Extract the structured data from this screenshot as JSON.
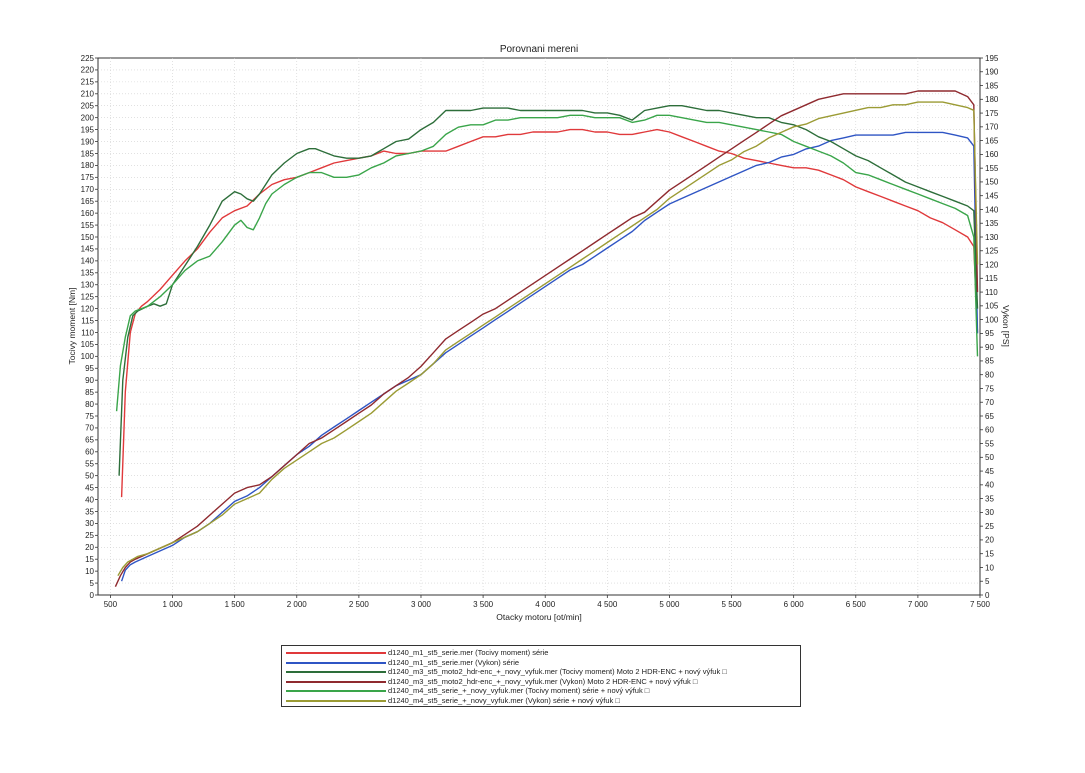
{
  "chart_data": {
    "type": "line",
    "title": "Porovnani mereni",
    "xlabel": "Otacky motoru [ot/min]",
    "ylabel": "Tocivy moment [Nm]",
    "y2label": "Vykon [PS]",
    "xlim": [
      400,
      7500
    ],
    "ylim": [
      0,
      225
    ],
    "y2lim": [
      0,
      195
    ],
    "xticks": [
      500,
      1000,
      1500,
      2000,
      2500,
      3000,
      3500,
      4000,
      4500,
      5000,
      5500,
      6000,
      6500,
      7000,
      7500
    ],
    "xtick_labels": [
      "500",
      "1 000",
      "1 500",
      "2 000",
      "2 500",
      "3 000",
      "3 500",
      "4 000",
      "4 500",
      "5 000",
      "5 500",
      "6 000",
      "6 500",
      "7 000",
      "7 500"
    ],
    "yticks": [
      0,
      5,
      10,
      15,
      20,
      25,
      30,
      35,
      40,
      45,
      50,
      55,
      60,
      65,
      70,
      75,
      80,
      85,
      90,
      95,
      100,
      105,
      110,
      115,
      120,
      125,
      130,
      135,
      140,
      145,
      150,
      155,
      160,
      165,
      170,
      175,
      180,
      185,
      190,
      195,
      200,
      205,
      210,
      215,
      220,
      225
    ],
    "y2ticks": [
      0,
      5,
      10,
      15,
      20,
      25,
      30,
      35,
      40,
      45,
      50,
      55,
      60,
      65,
      70,
      75,
      80,
      85,
      90,
      95,
      100,
      105,
      110,
      115,
      120,
      125,
      130,
      135,
      140,
      145,
      150,
      155,
      160,
      165,
      170,
      175,
      180,
      185,
      190,
      195
    ],
    "grid": true,
    "legend_position": "bottom",
    "series": [
      {
        "name": "d1240_m1_st5_serie.mer  (Tocivy moment)  série",
        "color": "#e0393b",
        "axis": "left",
        "x": [
          590,
          620,
          660,
          700,
          750,
          800,
          900,
          1000,
          1100,
          1200,
          1300,
          1400,
          1500,
          1600,
          1700,
          1800,
          1900,
          2000,
          2100,
          2200,
          2300,
          2400,
          2500,
          2600,
          2700,
          2800,
          2900,
          3000,
          3100,
          3200,
          3300,
          3400,
          3500,
          3600,
          3700,
          3800,
          3900,
          4000,
          4100,
          4200,
          4300,
          4400,
          4500,
          4600,
          4700,
          4800,
          4900,
          5000,
          5100,
          5200,
          5300,
          5400,
          5500,
          5600,
          5700,
          5800,
          5900,
          6000,
          6100,
          6200,
          6300,
          6400,
          6500,
          6600,
          6700,
          6800,
          6900,
          7000,
          7100,
          7200,
          7300,
          7400,
          7450,
          7480
        ],
        "y": [
          41,
          85,
          110,
          118,
          121,
          123,
          128,
          134,
          140,
          145,
          152,
          158,
          161,
          163,
          168,
          172,
          174,
          175,
          177,
          179,
          181,
          182,
          183,
          184,
          186,
          185,
          185,
          186,
          186,
          186,
          188,
          190,
          192,
          192,
          193,
          193,
          194,
          194,
          194,
          195,
          195,
          194,
          194,
          193,
          193,
          194,
          195,
          194,
          192,
          190,
          188,
          186,
          185,
          183,
          182,
          181,
          180,
          179,
          179,
          178,
          176,
          174,
          171,
          169,
          167,
          165,
          163,
          161,
          158,
          156,
          153,
          150,
          146,
          110
        ]
      },
      {
        "name": "d1240_m1_st5_serie.mer  (Vykon)  série",
        "color": "#2f55c4",
        "axis": "right",
        "x": [
          590,
          620,
          660,
          700,
          800,
          900,
          1000,
          1100,
          1200,
          1300,
          1400,
          1500,
          1600,
          1700,
          1800,
          1900,
          2000,
          2100,
          2200,
          2300,
          2400,
          2500,
          2600,
          2700,
          2800,
          2900,
          3000,
          3100,
          3200,
          3300,
          3400,
          3500,
          3600,
          3700,
          3800,
          3900,
          4000,
          4100,
          4200,
          4300,
          4400,
          4500,
          4600,
          4700,
          4800,
          4900,
          5000,
          5100,
          5200,
          5300,
          5400,
          5500,
          5600,
          5700,
          5800,
          5900,
          6000,
          6100,
          6200,
          6300,
          6400,
          6500,
          6600,
          6700,
          6800,
          6900,
          7000,
          7100,
          7200,
          7300,
          7400,
          7450,
          7480
        ],
        "y": [
          5,
          9,
          11,
          12,
          14,
          16,
          18,
          21,
          23,
          26,
          30,
          34,
          36,
          39,
          43,
          47,
          51,
          54,
          58,
          61,
          64,
          67,
          70,
          73,
          76,
          78,
          80,
          84,
          88,
          91,
          94,
          97,
          100,
          103,
          106,
          109,
          112,
          115,
          118,
          120,
          123,
          126,
          129,
          132,
          136,
          139,
          142,
          144,
          146,
          148,
          150,
          152,
          154,
          156,
          157,
          159,
          160,
          162,
          163,
          165,
          166,
          167,
          167,
          167,
          167,
          168,
          168,
          168,
          168,
          167,
          166,
          163,
          95
        ]
      },
      {
        "name": "d1240_m3_st5_moto2_hdr-enc_+_novy_vyfuk.mer  (Tocivy moment)  Moto 2  HDR-ENC + nový výfuk",
        "color": "#2d6e3a",
        "axis": "left",
        "x": [
          570,
          600,
          640,
          680,
          720,
          760,
          800,
          850,
          900,
          950,
          1000,
          1100,
          1200,
          1300,
          1400,
          1500,
          1550,
          1600,
          1650,
          1700,
          1750,
          1800,
          1900,
          2000,
          2100,
          2150,
          2200,
          2300,
          2400,
          2500,
          2600,
          2700,
          2800,
          2900,
          3000,
          3100,
          3200,
          3300,
          3400,
          3500,
          3600,
          3700,
          3800,
          3900,
          4000,
          4100,
          4200,
          4300,
          4400,
          4500,
          4600,
          4700,
          4800,
          4900,
          5000,
          5100,
          5200,
          5300,
          5400,
          5500,
          5600,
          5700,
          5800,
          5900,
          6000,
          6100,
          6200,
          6300,
          6400,
          6500,
          6600,
          6700,
          6800,
          6900,
          7000,
          7100,
          7200,
          7300,
          7400,
          7450,
          7480
        ],
        "y": [
          50,
          90,
          108,
          117,
          119,
          120,
          121,
          122,
          121,
          122,
          130,
          138,
          146,
          155,
          165,
          169,
          168,
          166,
          165,
          168,
          172,
          176,
          181,
          185,
          187,
          187,
          186,
          184,
          183,
          183,
          184,
          187,
          190,
          191,
          195,
          198,
          203,
          203,
          203,
          204,
          204,
          204,
          203,
          203,
          203,
          203,
          203,
          203,
          202,
          202,
          201,
          199,
          203,
          204,
          205,
          205,
          204,
          203,
          203,
          202,
          201,
          200,
          200,
          198,
          197,
          195,
          192,
          190,
          187,
          184,
          182,
          179,
          176,
          173,
          171,
          169,
          167,
          165,
          163,
          161,
          120
        ]
      },
      {
        "name": "d1240_m3_st5_moto2_hdr-enc_+_novy_vyfuk.mer  (Vykon)  Moto 2  HDR-ENC + nový výfuk",
        "color": "#8f2a2f",
        "axis": "right",
        "x": [
          540,
          580,
          620,
          660,
          700,
          800,
          900,
          1000,
          1100,
          1200,
          1300,
          1400,
          1500,
          1600,
          1700,
          1800,
          1900,
          2000,
          2100,
          2200,
          2300,
          2400,
          2500,
          2600,
          2700,
          2800,
          2900,
          3000,
          3100,
          3200,
          3300,
          3400,
          3500,
          3600,
          3700,
          3800,
          3900,
          4000,
          4100,
          4200,
          4300,
          4400,
          4500,
          4600,
          4700,
          4800,
          4900,
          5000,
          5100,
          5200,
          5300,
          5400,
          5500,
          5600,
          5700,
          5800,
          5900,
          6000,
          6100,
          6200,
          6300,
          6400,
          6500,
          6600,
          6700,
          6800,
          6900,
          7000,
          7100,
          7200,
          7300,
          7400,
          7450,
          7480
        ],
        "y": [
          3,
          7,
          10,
          12,
          13,
          15,
          17,
          19,
          22,
          25,
          29,
          33,
          37,
          39,
          40,
          43,
          47,
          51,
          55,
          57,
          60,
          63,
          66,
          69,
          73,
          76,
          79,
          83,
          88,
          93,
          96,
          99,
          102,
          104,
          107,
          110,
          113,
          116,
          119,
          122,
          125,
          128,
          131,
          134,
          137,
          139,
          143,
          147,
          150,
          153,
          156,
          159,
          162,
          165,
          168,
          171,
          174,
          176,
          178,
          180,
          181,
          182,
          182,
          182,
          182,
          182,
          182,
          183,
          183,
          183,
          183,
          181,
          178,
          110
        ]
      },
      {
        "name": "d1240_m4_st5_serie_+_novy_vyfuk.mer  (Tocivy moment)  série + nový výfuk",
        "color": "#3aa54a",
        "axis": "left",
        "x": [
          550,
          580,
          620,
          660,
          700,
          750,
          800,
          900,
          1000,
          1100,
          1200,
          1300,
          1400,
          1500,
          1550,
          1600,
          1650,
          1700,
          1750,
          1800,
          1900,
          2000,
          2100,
          2200,
          2300,
          2400,
          2500,
          2600,
          2700,
          2800,
          2900,
          3000,
          3100,
          3200,
          3300,
          3400,
          3500,
          3600,
          3700,
          3800,
          3900,
          4000,
          4100,
          4200,
          4300,
          4400,
          4500,
          4600,
          4700,
          4800,
          4900,
          5000,
          5100,
          5200,
          5300,
          5400,
          5500,
          5600,
          5700,
          5800,
          5900,
          6000,
          6100,
          6200,
          6300,
          6400,
          6500,
          6600,
          6700,
          6800,
          6900,
          7000,
          7100,
          7200,
          7300,
          7400,
          7450,
          7480
        ],
        "y": [
          77,
          96,
          108,
          117,
          119,
          120,
          121,
          125,
          130,
          136,
          140,
          142,
          148,
          155,
          157,
          154,
          153,
          158,
          164,
          168,
          172,
          175,
          177,
          177,
          175,
          175,
          176,
          179,
          181,
          184,
          185,
          186,
          188,
          193,
          196,
          197,
          197,
          199,
          199,
          200,
          200,
          200,
          200,
          201,
          201,
          200,
          200,
          200,
          198,
          199,
          201,
          201,
          200,
          199,
          198,
          198,
          197,
          196,
          195,
          194,
          193,
          190,
          188,
          186,
          184,
          181,
          177,
          176,
          174,
          172,
          170,
          168,
          166,
          164,
          162,
          159,
          150,
          100
        ]
      },
      {
        "name": "d1240_m4_st5_serie_+_novy_vyfuk.mer  (Vykon)  série + nový výfuk",
        "color": "#9b9b34",
        "axis": "right",
        "x": [
          560,
          600,
          640,
          680,
          720,
          800,
          900,
          1000,
          1100,
          1200,
          1300,
          1400,
          1500,
          1600,
          1700,
          1800,
          1900,
          2000,
          2100,
          2200,
          2300,
          2400,
          2500,
          2600,
          2700,
          2800,
          2900,
          3000,
          3100,
          3200,
          3300,
          3400,
          3500,
          3600,
          3700,
          3800,
          3900,
          4000,
          4100,
          4200,
          4300,
          4400,
          4500,
          4600,
          4700,
          4800,
          4900,
          5000,
          5100,
          5200,
          5300,
          5400,
          5500,
          5600,
          5700,
          5800,
          5900,
          6000,
          6100,
          6200,
          6300,
          6400,
          6500,
          6600,
          6700,
          6800,
          6900,
          7000,
          7100,
          7200,
          7300,
          7400,
          7450,
          7480
        ],
        "y": [
          7,
          10,
          12,
          13,
          14,
          15,
          17,
          19,
          21,
          23,
          26,
          29,
          33,
          35,
          37,
          42,
          46,
          49,
          52,
          55,
          57,
          60,
          63,
          66,
          70,
          74,
          77,
          80,
          84,
          89,
          92,
          95,
          98,
          101,
          104,
          107,
          110,
          113,
          116,
          119,
          122,
          125,
          128,
          131,
          134,
          137,
          140,
          144,
          147,
          150,
          153,
          156,
          158,
          161,
          163,
          166,
          168,
          170,
          171,
          173,
          174,
          175,
          176,
          177,
          177,
          178,
          178,
          179,
          179,
          179,
          178,
          177,
          176,
          120
        ]
      }
    ]
  },
  "legend": {
    "entries": [
      "d1240_m1_st5_serie.mer  (Tocivy moment)  série",
      "d1240_m1_st5_serie.mer  (Vykon)  série",
      "d1240_m3_st5_moto2_hdr-enc_+_novy_vyfuk.mer  (Tocivy moment)  Moto 2  HDR-ENC + nový výfuk □",
      "d1240_m3_st5_moto2_hdr-enc_+_novy_vyfuk.mer  (Vykon)  Moto 2  HDR-ENC + nový výfuk □",
      "d1240_m4_st5_serie_+_novy_vyfuk.mer  (Tocivy moment)  série + nový výfuk □",
      "d1240_m4_st5_serie_+_novy_vyfuk.mer  (Vykon)  série + nový výfuk □"
    ]
  }
}
